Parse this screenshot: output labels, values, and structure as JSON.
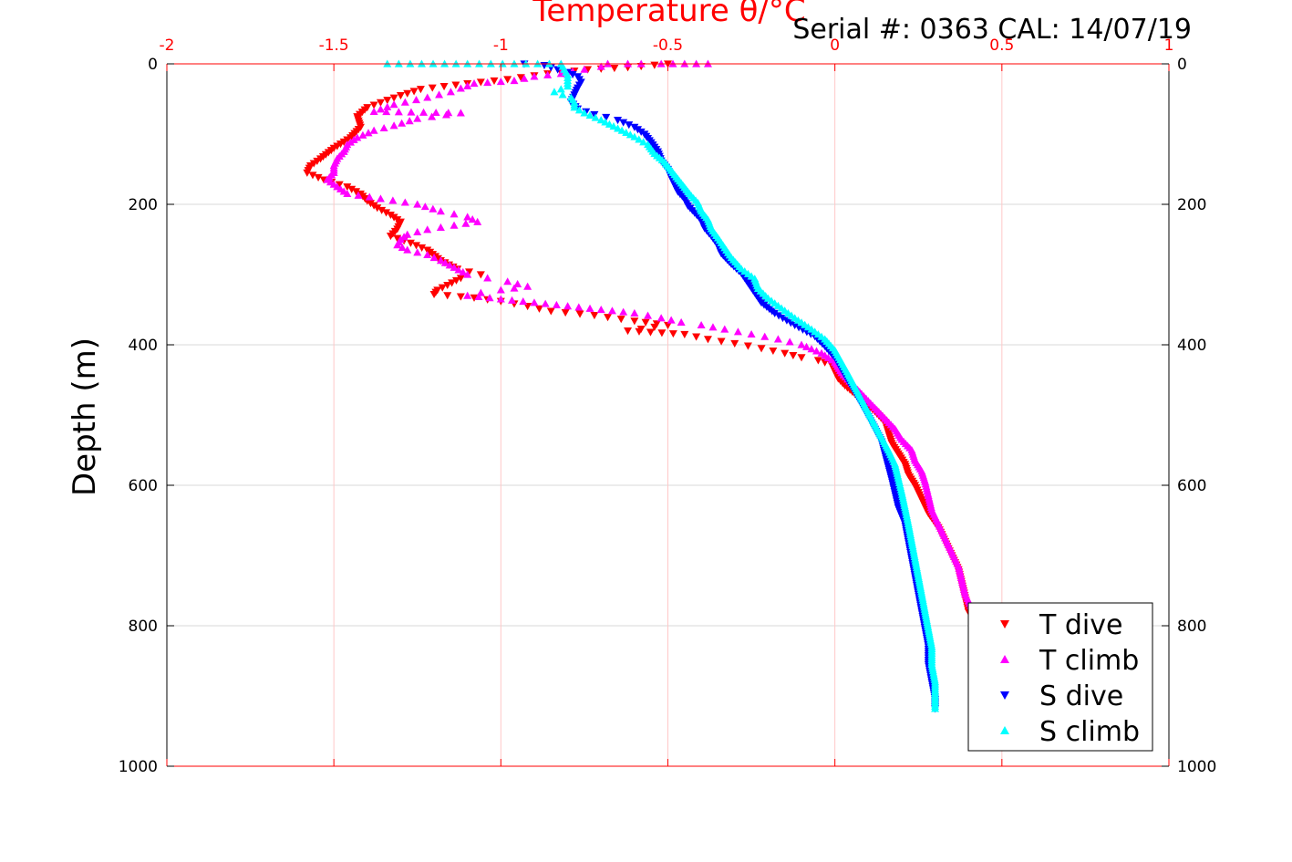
{
  "chart_data": {
    "type": "scatter",
    "title": "Serial #: 0363  CAL: 14/07/19",
    "xlabel": "Temperature θ/°C",
    "ylabel": "Depth (m)",
    "xlim": [
      -2,
      1
    ],
    "ylim": [
      0,
      1000
    ],
    "y_inverted": true,
    "x_axis_position": "top",
    "y_axis_both_sides": true,
    "x_ticks": [
      -2,
      -1.5,
      -1,
      -0.5,
      0,
      0.5,
      1
    ],
    "x_tick_labels": [
      "-2",
      "-1.5",
      "-1",
      "-0.5",
      "0",
      "0.5",
      "1"
    ],
    "y_ticks": [
      0,
      200,
      400,
      600,
      800,
      1000
    ],
    "y_tick_labels": [
      "0",
      "200",
      "400",
      "600",
      "800",
      "1000"
    ],
    "grid": true,
    "legend_position": "bottom-right",
    "colors": {
      "x_axis": "#ff0000",
      "grid": "#d9d9d9",
      "x_grid": "#ffc8c8"
    },
    "series": [
      {
        "name": "T dive",
        "marker": "triangle-down",
        "color": "#ff0000",
        "points": [
          [
            -0.5,
            0
          ],
          [
            -0.62,
            5
          ],
          [
            -0.74,
            8
          ],
          [
            -0.86,
            14
          ],
          [
            -0.98,
            22
          ],
          [
            -1.1,
            28
          ],
          [
            -1.24,
            36
          ],
          [
            -1.3,
            45
          ],
          [
            -1.36,
            55
          ],
          [
            -1.4,
            62
          ],
          [
            -1.43,
            75
          ],
          [
            -1.42,
            90
          ],
          [
            -1.45,
            105
          ],
          [
            -1.5,
            120
          ],
          [
            -1.54,
            135
          ],
          [
            -1.57,
            145
          ],
          [
            -1.58,
            155
          ],
          [
            -1.53,
            165
          ],
          [
            -1.46,
            175
          ],
          [
            -1.42,
            185
          ],
          [
            -1.4,
            195
          ],
          [
            -1.37,
            205
          ],
          [
            -1.33,
            215
          ],
          [
            -1.3,
            225
          ],
          [
            -1.31,
            235
          ],
          [
            -1.33,
            245
          ],
          [
            -1.27,
            255
          ],
          [
            -1.22,
            265
          ],
          [
            -1.18,
            280
          ],
          [
            -1.13,
            292
          ],
          [
            -1.06,
            300
          ],
          [
            -1.12,
            305
          ],
          [
            -1.16,
            315
          ],
          [
            -1.19,
            322
          ],
          [
            -1.2,
            328
          ],
          [
            -1.08,
            333
          ],
          [
            -1.0,
            338
          ],
          [
            -0.92,
            345
          ],
          [
            -0.85,
            352
          ],
          [
            -0.72,
            358
          ],
          [
            -0.6,
            366
          ],
          [
            -0.5,
            372
          ],
          [
            -0.62,
            380
          ],
          [
            -0.45,
            385
          ],
          [
            -0.38,
            392
          ],
          [
            -0.3,
            398
          ],
          [
            -0.22,
            405
          ],
          [
            -0.15,
            412
          ],
          [
            -0.1,
            418
          ],
          [
            -0.05,
            422
          ],
          [
            -0.01,
            428
          ],
          [
            0.0,
            438
          ],
          [
            0.01,
            448
          ],
          [
            0.03,
            458
          ],
          [
            0.06,
            470
          ],
          [
            0.09,
            482
          ],
          [
            0.12,
            495
          ],
          [
            0.15,
            510
          ],
          [
            0.16,
            525
          ],
          [
            0.17,
            540
          ],
          [
            0.19,
            555
          ],
          [
            0.21,
            570
          ],
          [
            0.22,
            585
          ],
          [
            0.24,
            600
          ],
          [
            0.26,
            620
          ],
          [
            0.28,
            640
          ],
          [
            0.31,
            660
          ],
          [
            0.33,
            680
          ],
          [
            0.35,
            700
          ],
          [
            0.37,
            720
          ],
          [
            0.38,
            740
          ],
          [
            0.39,
            760
          ],
          [
            0.4,
            780
          ]
        ]
      },
      {
        "name": "T climb",
        "marker": "triangle-up",
        "color": "#ff00ff",
        "points": [
          [
            -0.38,
            0
          ],
          [
            -0.52,
            0
          ],
          [
            -0.58,
            0
          ],
          [
            -0.62,
            0
          ],
          [
            -0.68,
            0
          ],
          [
            -0.7,
            4
          ],
          [
            -0.75,
            8
          ],
          [
            -0.82,
            14
          ],
          [
            -0.9,
            18
          ],
          [
            -0.96,
            24
          ],
          [
            -1.08,
            28
          ],
          [
            -1.12,
            35
          ],
          [
            -1.15,
            40
          ],
          [
            -1.22,
            48
          ],
          [
            -1.32,
            58
          ],
          [
            -1.38,
            68
          ],
          [
            -1.12,
            70
          ],
          [
            -1.25,
            78
          ],
          [
            -1.32,
            88
          ],
          [
            -1.38,
            95
          ],
          [
            -1.43,
            105
          ],
          [
            -1.46,
            115
          ],
          [
            -1.47,
            125
          ],
          [
            -1.49,
            135
          ],
          [
            -1.5,
            145
          ],
          [
            -1.5,
            155
          ],
          [
            -1.52,
            165
          ],
          [
            -1.49,
            175
          ],
          [
            -1.46,
            185
          ],
          [
            -1.36,
            192
          ],
          [
            -1.25,
            200
          ],
          [
            -1.18,
            210
          ],
          [
            -1.1,
            218
          ],
          [
            -1.07,
            225
          ],
          [
            -1.14,
            230
          ],
          [
            -1.22,
            236
          ],
          [
            -1.28,
            243
          ],
          [
            -1.3,
            250
          ],
          [
            -1.31,
            258
          ],
          [
            -1.28,
            265
          ],
          [
            -1.22,
            272
          ],
          [
            -1.18,
            280
          ],
          [
            -1.14,
            290
          ],
          [
            -1.1,
            300
          ],
          [
            -1.04,
            305
          ],
          [
            -0.98,
            310
          ],
          [
            -0.92,
            317
          ],
          [
            -1.0,
            322
          ],
          [
            -1.06,
            326
          ],
          [
            -1.1,
            330
          ],
          [
            -1.0,
            335
          ],
          [
            -0.9,
            340
          ],
          [
            -0.8,
            345
          ],
          [
            -0.7,
            350
          ],
          [
            -0.6,
            355
          ],
          [
            -0.52,
            362
          ],
          [
            -0.46,
            368
          ],
          [
            -0.4,
            372
          ],
          [
            -0.33,
            378
          ],
          [
            -0.25,
            385
          ],
          [
            -0.17,
            392
          ],
          [
            -0.1,
            400
          ],
          [
            -0.04,
            412
          ],
          [
            0.0,
            425
          ],
          [
            0.02,
            440
          ],
          [
            0.05,
            455
          ],
          [
            0.08,
            470
          ],
          [
            0.12,
            490
          ],
          [
            0.15,
            505
          ],
          [
            0.18,
            520
          ],
          [
            0.2,
            535
          ],
          [
            0.23,
            550
          ],
          [
            0.24,
            565
          ],
          [
            0.26,
            580
          ],
          [
            0.27,
            595
          ],
          [
            0.28,
            615
          ],
          [
            0.29,
            635
          ],
          [
            0.31,
            655
          ],
          [
            0.33,
            675
          ],
          [
            0.35,
            695
          ],
          [
            0.37,
            715
          ],
          [
            0.38,
            735
          ],
          [
            0.39,
            755
          ],
          [
            0.41,
            775
          ],
          [
            0.42,
            790
          ]
        ]
      },
      {
        "name": "S dive",
        "marker": "triangle-down",
        "color": "#0000ff",
        "points": [
          [
            -0.93,
            0
          ],
          [
            -0.87,
            2
          ],
          [
            -0.83,
            8
          ],
          [
            -0.8,
            12
          ],
          [
            -0.77,
            18
          ],
          [
            -0.76,
            26
          ],
          [
            -0.77,
            34
          ],
          [
            -0.78,
            44
          ],
          [
            -0.79,
            54
          ],
          [
            -0.77,
            64
          ],
          [
            -0.72,
            72
          ],
          [
            -0.65,
            80
          ],
          [
            -0.6,
            90
          ],
          [
            -0.57,
            100
          ],
          [
            -0.55,
            112
          ],
          [
            -0.53,
            125
          ],
          [
            -0.52,
            138
          ],
          [
            -0.5,
            150
          ],
          [
            -0.49,
            162
          ],
          [
            -0.48,
            172
          ],
          [
            -0.47,
            182
          ],
          [
            -0.45,
            192
          ],
          [
            -0.44,
            202
          ],
          [
            -0.42,
            212
          ],
          [
            -0.4,
            222
          ],
          [
            -0.39,
            234
          ],
          [
            -0.37,
            245
          ],
          [
            -0.35,
            258
          ],
          [
            -0.34,
            270
          ],
          [
            -0.31,
            285
          ],
          [
            -0.28,
            298
          ],
          [
            -0.26,
            312
          ],
          [
            -0.24,
            326
          ],
          [
            -0.22,
            340
          ],
          [
            -0.18,
            355
          ],
          [
            -0.12,
            372
          ],
          [
            -0.06,
            388
          ],
          [
            -0.03,
            402
          ],
          [
            0.0,
            418
          ],
          [
            0.02,
            435
          ],
          [
            0.04,
            452
          ],
          [
            0.06,
            468
          ],
          [
            0.08,
            485
          ],
          [
            0.1,
            502
          ],
          [
            0.12,
            520
          ],
          [
            0.14,
            538
          ],
          [
            0.15,
            556
          ],
          [
            0.16,
            574
          ],
          [
            0.17,
            592
          ],
          [
            0.18,
            612
          ],
          [
            0.19,
            632
          ],
          [
            0.21,
            655
          ],
          [
            0.22,
            680
          ],
          [
            0.23,
            705
          ],
          [
            0.24,
            730
          ],
          [
            0.25,
            755
          ],
          [
            0.26,
            780
          ],
          [
            0.27,
            805
          ],
          [
            0.28,
            830
          ],
          [
            0.28,
            855
          ],
          [
            0.29,
            880
          ],
          [
            0.3,
            905
          ],
          [
            0.3,
            918
          ]
        ]
      },
      {
        "name": "S climb",
        "marker": "triangle-up",
        "color": "#00ffff",
        "points": [
          [
            -1.34,
            0
          ],
          [
            -1.1,
            0
          ],
          [
            -0.82,
            0
          ],
          [
            -0.81,
            8
          ],
          [
            -0.8,
            16
          ],
          [
            -0.8,
            24
          ],
          [
            -0.8,
            32
          ],
          [
            -0.84,
            40
          ],
          [
            -0.79,
            48
          ],
          [
            -0.78,
            55
          ],
          [
            -0.78,
            62
          ],
          [
            -0.75,
            70
          ],
          [
            -0.7,
            80
          ],
          [
            -0.65,
            92
          ],
          [
            -0.6,
            104
          ],
          [
            -0.56,
            115
          ],
          [
            -0.54,
            128
          ],
          [
            -0.51,
            140
          ],
          [
            -0.49,
            152
          ],
          [
            -0.47,
            164
          ],
          [
            -0.45,
            176
          ],
          [
            -0.43,
            188
          ],
          [
            -0.41,
            198
          ],
          [
            -0.4,
            210
          ],
          [
            -0.38,
            222
          ],
          [
            -0.37,
            235
          ],
          [
            -0.35,
            248
          ],
          [
            -0.33,
            262
          ],
          [
            -0.31,
            276
          ],
          [
            -0.28,
            292
          ],
          [
            -0.24,
            306
          ],
          [
            -0.23,
            320
          ],
          [
            -0.2,
            334
          ],
          [
            -0.16,
            348
          ],
          [
            -0.12,
            362
          ],
          [
            -0.07,
            378
          ],
          [
            -0.03,
            392
          ],
          [
            0.0,
            408
          ],
          [
            0.02,
            425
          ],
          [
            0.04,
            442
          ],
          [
            0.06,
            460
          ],
          [
            0.08,
            478
          ],
          [
            0.1,
            496
          ],
          [
            0.12,
            514
          ],
          [
            0.14,
            532
          ],
          [
            0.16,
            550
          ],
          [
            0.18,
            570
          ],
          [
            0.19,
            590
          ],
          [
            0.2,
            610
          ],
          [
            0.21,
            632
          ],
          [
            0.22,
            655
          ],
          [
            0.23,
            680
          ],
          [
            0.24,
            705
          ],
          [
            0.25,
            730
          ],
          [
            0.26,
            755
          ],
          [
            0.27,
            780
          ],
          [
            0.28,
            805
          ],
          [
            0.29,
            830
          ],
          [
            0.29,
            855
          ],
          [
            0.3,
            880
          ],
          [
            0.3,
            905
          ],
          [
            0.3,
            918
          ]
        ]
      }
    ]
  }
}
